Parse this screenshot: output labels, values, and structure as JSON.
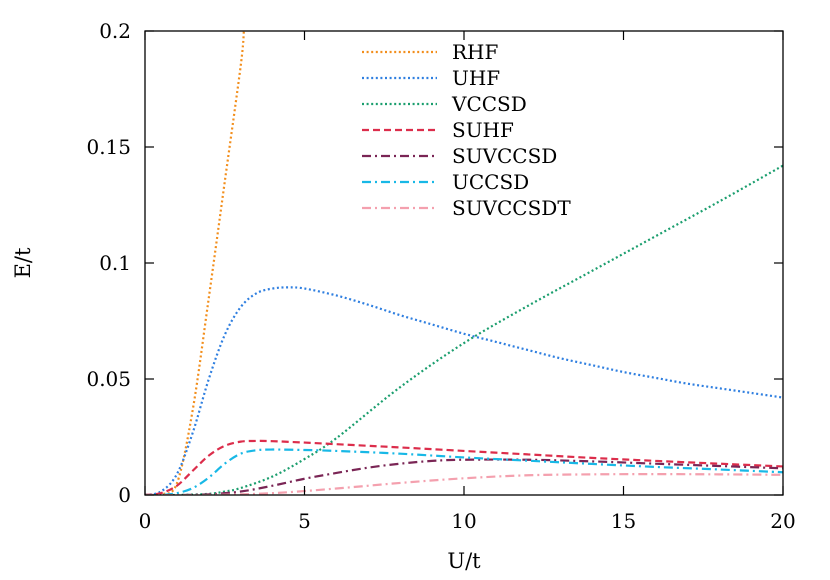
{
  "chart_data": {
    "type": "line",
    "title": "",
    "xlabel": "U/t",
    "ylabel": "E/t",
    "xlim": [
      0,
      20
    ],
    "ylim": [
      0,
      0.2
    ],
    "xticks": [
      0,
      5,
      10,
      15,
      20
    ],
    "xtick_labels": [
      "0",
      "5",
      "10",
      "15",
      "20"
    ],
    "yticks": [
      0,
      0.05,
      0.1,
      0.15,
      0.2
    ],
    "ytick_labels": [
      "0",
      "0.05",
      "0.1",
      "0.15",
      "0.2"
    ],
    "grid": false,
    "legend_position": "top-center",
    "series": [
      {
        "name": "RHF",
        "color": "#f28e1c",
        "dash": "dotted",
        "x": [
          0,
          0.5,
          1.0,
          1.5,
          2.0,
          2.5,
          3.0,
          3.1
        ],
        "y": [
          0,
          0.0003,
          0.005,
          0.037,
          0.085,
          0.135,
          0.185,
          0.2
        ]
      },
      {
        "name": "UHF",
        "color": "#2f7fe0",
        "dash": "dotted",
        "x": [
          0,
          0.5,
          1.0,
          1.5,
          2.0,
          2.5,
          3.0,
          3.5,
          4.0,
          4.5,
          5.0,
          6.0,
          7.0,
          8.0,
          9.0,
          10.0,
          11.0,
          12.0,
          13.0,
          14.0,
          15.0,
          16.0,
          17.0,
          18.0,
          19.0,
          20.0
        ],
        "y": [
          0,
          0.0015,
          0.009,
          0.027,
          0.05,
          0.069,
          0.081,
          0.087,
          0.089,
          0.0895,
          0.089,
          0.086,
          0.082,
          0.0775,
          0.0735,
          0.0695,
          0.066,
          0.0625,
          0.059,
          0.056,
          0.053,
          0.0505,
          0.048,
          0.046,
          0.044,
          0.042
        ]
      },
      {
        "name": "VCCSD",
        "color": "#1b9e6e",
        "dash": "dotted",
        "x": [
          0,
          1.0,
          2.0,
          2.5,
          3.0,
          4.0,
          5.0,
          6.0,
          8.0,
          10.0,
          12.0,
          14.0,
          16.0,
          18.0,
          20.0
        ],
        "y": [
          0,
          0,
          0.0005,
          0.0015,
          0.003,
          0.008,
          0.0155,
          0.0245,
          0.0465,
          0.0655,
          0.0815,
          0.0965,
          0.1115,
          0.1265,
          0.142
        ]
      },
      {
        "name": "SUHF",
        "color": "#dc2d4b",
        "dash": "dashed",
        "x": [
          0,
          0.5,
          1.0,
          1.5,
          2.0,
          2.5,
          3.0,
          3.5,
          4.0,
          5.0,
          6.0,
          7.0,
          8.0,
          10.0,
          12.0,
          14.0,
          16.0,
          18.0,
          20.0
        ],
        "y": [
          0,
          0.0008,
          0.004,
          0.0105,
          0.017,
          0.0212,
          0.023,
          0.0233,
          0.0232,
          0.0226,
          0.0219,
          0.0212,
          0.0205,
          0.019,
          0.0175,
          0.016,
          0.0147,
          0.0135,
          0.0123
        ]
      },
      {
        "name": "SUVCCSD",
        "color": "#7a2555",
        "dash": "dashdot",
        "x": [
          0,
          1.0,
          2.0,
          3.0,
          4.0,
          5.0,
          6.0,
          7.0,
          8.0,
          9.0,
          10.0,
          12.0,
          14.0,
          16.0,
          18.0,
          20.0
        ],
        "y": [
          0,
          0,
          0.0003,
          0.0015,
          0.004,
          0.007,
          0.0095,
          0.0118,
          0.0135,
          0.0147,
          0.0152,
          0.0152,
          0.0145,
          0.0135,
          0.0125,
          0.0115
        ]
      },
      {
        "name": "UCCSD",
        "color": "#18b8e6",
        "dash": "dashdot",
        "x": [
          0,
          0.5,
          1.0,
          1.5,
          2.0,
          2.5,
          3.0,
          3.5,
          4.0,
          5.0,
          6.0,
          8.0,
          10.0,
          12.0,
          14.0,
          16.0,
          18.0,
          20.0
        ],
        "y": [
          0,
          0,
          0.0008,
          0.003,
          0.0075,
          0.0135,
          0.0178,
          0.0193,
          0.0196,
          0.0194,
          0.019,
          0.0178,
          0.0162,
          0.0148,
          0.0134,
          0.0121,
          0.011,
          0.0098
        ]
      },
      {
        "name": "SUVCCSDT",
        "color": "#f4a0ae",
        "dash": "dashdot",
        "x": [
          0,
          2.0,
          4.0,
          6.0,
          8.0,
          10.0,
          12.0,
          14.0,
          16.0,
          18.0,
          20.0
        ],
        "y": [
          0,
          0,
          0.0008,
          0.0028,
          0.0052,
          0.0072,
          0.0085,
          0.0089,
          0.009,
          0.0089,
          0.0087
        ]
      }
    ]
  }
}
